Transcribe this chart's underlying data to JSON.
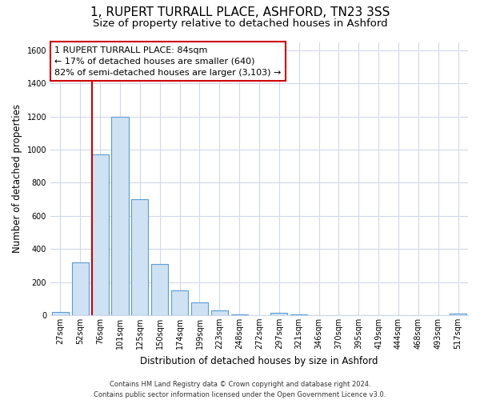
{
  "title": "1, RUPERT TURRALL PLACE, ASHFORD, TN23 3SS",
  "subtitle": "Size of property relative to detached houses in Ashford",
  "xlabel": "Distribution of detached houses by size in Ashford",
  "ylabel": "Number of detached properties",
  "bar_labels": [
    "27sqm",
    "52sqm",
    "76sqm",
    "101sqm",
    "125sqm",
    "150sqm",
    "174sqm",
    "199sqm",
    "223sqm",
    "248sqm",
    "272sqm",
    "297sqm",
    "321sqm",
    "346sqm",
    "370sqm",
    "395sqm",
    "419sqm",
    "444sqm",
    "468sqm",
    "493sqm",
    "517sqm"
  ],
  "bar_values": [
    20,
    320,
    970,
    1200,
    700,
    310,
    150,
    75,
    30,
    5,
    0,
    15,
    5,
    0,
    0,
    0,
    0,
    0,
    0,
    0,
    10
  ],
  "bar_color": "#cfe2f3",
  "bar_edge_color": "#5b9bd5",
  "highlight_bar_index": 2,
  "highlight_color": "#cc0000",
  "annotation_title": "1 RUPERT TURRALL PLACE: 84sqm",
  "annotation_line1": "← 17% of detached houses are smaller (640)",
  "annotation_line2": "82% of semi-detached houses are larger (3,103) →",
  "annotation_box_color": "#ffffff",
  "annotation_box_edge": "#cc0000",
  "ylim": [
    0,
    1650
  ],
  "yticks": [
    0,
    200,
    400,
    600,
    800,
    1000,
    1200,
    1400,
    1600
  ],
  "footer1": "Contains HM Land Registry data © Crown copyright and database right 2024.",
  "footer2": "Contains public sector information licensed under the Open Government Licence v3.0.",
  "bg_color": "#ffffff",
  "grid_color": "#d0d8e8",
  "title_fontsize": 11,
  "subtitle_fontsize": 9.5,
  "axis_label_fontsize": 8.5,
  "tick_fontsize": 7,
  "annotation_fontsize": 8,
  "footer_fontsize": 6
}
